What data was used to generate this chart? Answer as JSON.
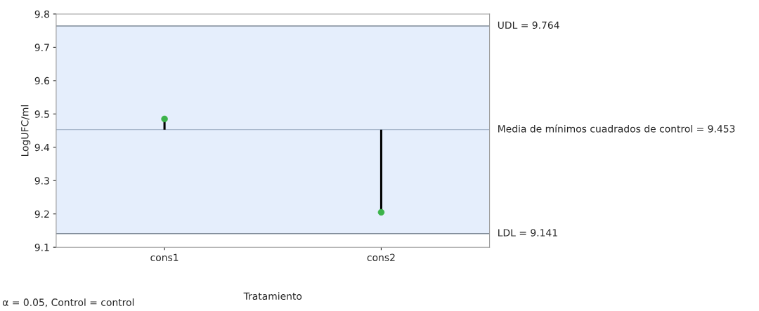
{
  "chart_data": {
    "type": "lollipop",
    "xlabel": "Tratamiento",
    "ylabel": "LogUFC/ml",
    "categories": [
      "cons1",
      "cons2"
    ],
    "values": [
      9.485,
      9.205
    ],
    "errors": [
      [
        9.453,
        9.485
      ],
      [
        9.205,
        9.453
      ]
    ],
    "color": "#3cb34a",
    "marker": "circle",
    "ylim": [
      9.1,
      9.8
    ],
    "yticks": [
      9.1,
      9.2,
      9.3,
      9.4,
      9.5,
      9.6,
      9.7,
      9.8
    ],
    "grid": false,
    "bands": [
      {
        "axis": "y",
        "from": 9.141,
        "to": 9.764,
        "color": "#e5eefc"
      }
    ],
    "ref_lines": [
      {
        "axis": "y",
        "value": 9.764,
        "label": "UDL = 9.764",
        "color": "#7f8b99"
      },
      {
        "axis": "y",
        "value": 9.453,
        "label": "Media de mínimos cuadrados de control = 9.453",
        "color": "#a9b8cc"
      },
      {
        "axis": "y",
        "value": 9.141,
        "label": "LDL = 9.141",
        "color": "#7f8b99"
      }
    ],
    "annotations": [
      "α = 0.05, Control = control"
    ]
  }
}
